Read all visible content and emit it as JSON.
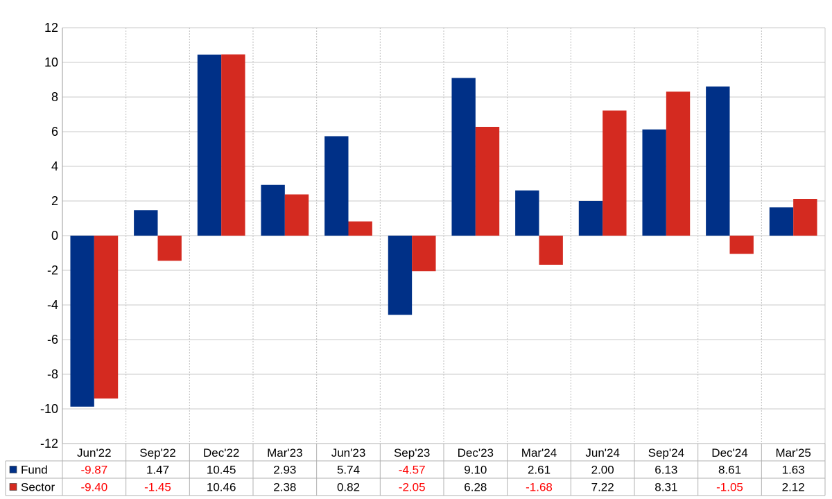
{
  "chart_data": {
    "type": "bar",
    "categories": [
      "Jun'22",
      "Sep'22",
      "Dec'22",
      "Mar'23",
      "Jun'23",
      "Sep'23",
      "Dec'23",
      "Mar'24",
      "Jun'24",
      "Sep'24",
      "Dec'24",
      "Mar'25"
    ],
    "series": [
      {
        "name": "Fund",
        "color": "#003087",
        "values": [
          -9.87,
          1.47,
          10.45,
          2.93,
          5.74,
          -4.57,
          9.1,
          2.61,
          2.0,
          6.13,
          8.61,
          1.63
        ],
        "labels": [
          "-9.87",
          "1.47",
          "10.45",
          "2.93",
          "5.74",
          "-4.57",
          "9.10",
          "2.61",
          "2.00",
          "6.13",
          "8.61",
          "1.63"
        ]
      },
      {
        "name": "Sector",
        "color": "#d42a20",
        "values": [
          -9.4,
          -1.45,
          10.46,
          2.38,
          0.82,
          -2.05,
          6.28,
          -1.68,
          7.22,
          8.31,
          -1.05,
          2.12
        ],
        "labels": [
          "-9.40",
          "-1.45",
          "10.46",
          "2.38",
          "0.82",
          "-2.05",
          "6.28",
          "-1.68",
          "7.22",
          "8.31",
          "-1.05",
          "2.12"
        ]
      }
    ],
    "title": "",
    "xlabel": "",
    "ylabel": "",
    "ylim": [
      -12,
      12
    ],
    "yticks": [
      "12",
      "10",
      "8",
      "6",
      "4",
      "2",
      "0",
      "-2",
      "-4",
      "-6",
      "-8",
      "-10",
      "-12"
    ],
    "grid": true,
    "legend": "bottom-left data table",
    "negative_label_color": "#ff0000"
  }
}
